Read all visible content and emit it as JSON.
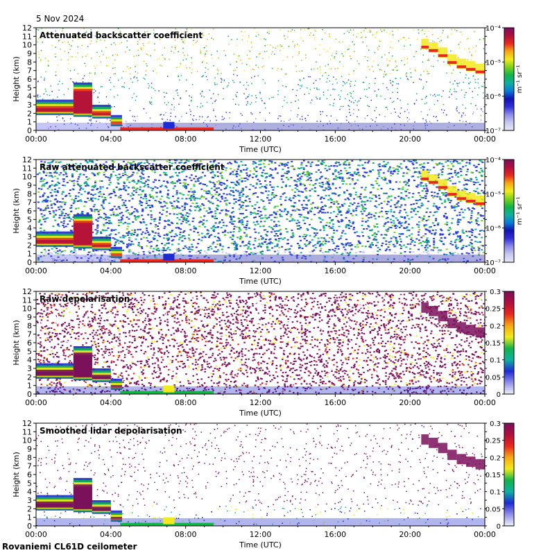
{
  "header": {
    "date": "5 Nov 2024"
  },
  "footer": {
    "site": "Rovaniemi CL61D ceilometer"
  },
  "colors": {
    "low": "#e6e6f5",
    "blue": "#1e2ad4",
    "green": "#12b34a",
    "yellow": "#f2ea1c",
    "red": "#e8281e",
    "purple": "#7a0f5c",
    "grey": "#dcdcdc"
  },
  "chart_data": [
    {
      "type": "heatmap",
      "title": "Attenuated backscatter coefficient",
      "xlabel": "Time (UTC)",
      "ylabel": "Height (km)",
      "x_ticks": [
        "00:00",
        "04:00",
        "08:00",
        "12:00",
        "16:00",
        "20:00",
        "00:00"
      ],
      "xlim_hours": [
        0,
        24
      ],
      "ylim": [
        0,
        12
      ],
      "y_ticks": [
        "0",
        "1",
        "2",
        "3",
        "4",
        "5",
        "6",
        "7",
        "8",
        "9",
        "10",
        "11",
        "12"
      ],
      "colorbar": {
        "scale": "log",
        "units": "m⁻¹ sr⁻¹",
        "ticks": [
          "10⁻⁷",
          "10⁻⁶",
          "10⁻⁵",
          "10⁻⁴"
        ]
      }
    },
    {
      "type": "heatmap",
      "title": "Raw attenuated backscatter coefficient",
      "xlabel": "Time (UTC)",
      "ylabel": "Height (km)",
      "x_ticks": [
        "00:00",
        "04:00",
        "08:00",
        "12:00",
        "16:00",
        "20:00",
        "00:00"
      ],
      "xlim_hours": [
        0,
        24
      ],
      "ylim": [
        0,
        12
      ],
      "y_ticks": [
        "0",
        "1",
        "2",
        "3",
        "4",
        "5",
        "6",
        "7",
        "8",
        "9",
        "10",
        "11",
        "12"
      ],
      "colorbar": {
        "scale": "log",
        "units": "m⁻¹ sr⁻¹",
        "ticks": [
          "10⁻⁷",
          "10⁻⁶",
          "10⁻⁵",
          "10⁻⁴"
        ]
      }
    },
    {
      "type": "heatmap",
      "title": "Raw depolarisation",
      "xlabel": "Time (UTC)",
      "ylabel": "Height (km)",
      "x_ticks": [
        "00:00",
        "04:00",
        "08:00",
        "12:00",
        "16:00",
        "20:00",
        "00:00"
      ],
      "xlim_hours": [
        0,
        24
      ],
      "ylim": [
        0,
        12
      ],
      "y_ticks": [
        "0",
        "1",
        "2",
        "3",
        "4",
        "5",
        "6",
        "7",
        "8",
        "9",
        "10",
        "11",
        "12"
      ],
      "colorbar": {
        "scale": "linear",
        "units": "",
        "ticks": [
          "0",
          "0.05",
          "0.1",
          "0.15",
          "0.2",
          "0.25",
          "0.3"
        ]
      }
    },
    {
      "type": "heatmap",
      "title": "Smoothed lidar depolarisation",
      "xlabel": "Time (UTC)",
      "ylabel": "Height (km)",
      "x_ticks": [
        "00:00",
        "04:00",
        "08:00",
        "12:00",
        "16:00",
        "20:00",
        "00:00"
      ],
      "xlim_hours": [
        0,
        24
      ],
      "ylim": [
        0,
        12
      ],
      "y_ticks": [
        "0",
        "1",
        "2",
        "3",
        "4",
        "5",
        "6",
        "7",
        "8",
        "9",
        "10",
        "11",
        "12"
      ],
      "colorbar": {
        "scale": "linear",
        "units": "",
        "ticks": [
          "0",
          "0.05",
          "0.1",
          "0.15",
          "0.2",
          "0.25",
          "0.3"
        ]
      }
    }
  ]
}
